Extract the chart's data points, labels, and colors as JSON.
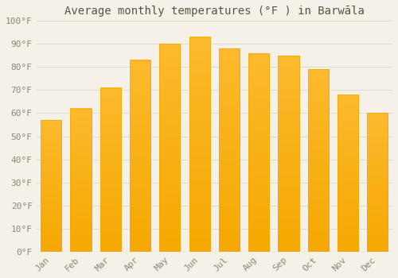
{
  "title": "Average monthly temperatures (°F ) in Barwāla",
  "months": [
    "Jan",
    "Feb",
    "Mar",
    "Apr",
    "May",
    "Jun",
    "Jul",
    "Aug",
    "Sep",
    "Oct",
    "Nov",
    "Dec"
  ],
  "values": [
    57,
    62,
    71,
    83,
    90,
    93,
    88,
    86,
    85,
    79,
    68,
    60
  ],
  "bar_color_top": "#FDBA2E",
  "bar_color_bottom": "#F5A800",
  "background_color": "#F5F0E8",
  "plot_bg_color": "#F5F0E8",
  "grid_color": "#DDDDCC",
  "tick_label_color": "#888877",
  "title_color": "#555544",
  "ylim": [
    0,
    100
  ],
  "yticks": [
    0,
    10,
    20,
    30,
    40,
    50,
    60,
    70,
    80,
    90,
    100
  ],
  "ytick_labels": [
    "0°F",
    "10°F",
    "20°F",
    "30°F",
    "40°F",
    "50°F",
    "60°F",
    "70°F",
    "80°F",
    "90°F",
    "100°F"
  ],
  "title_fontsize": 10,
  "tick_fontsize": 8,
  "bar_width": 0.7,
  "figsize": [
    5.0,
    3.5
  ],
  "dpi": 100
}
